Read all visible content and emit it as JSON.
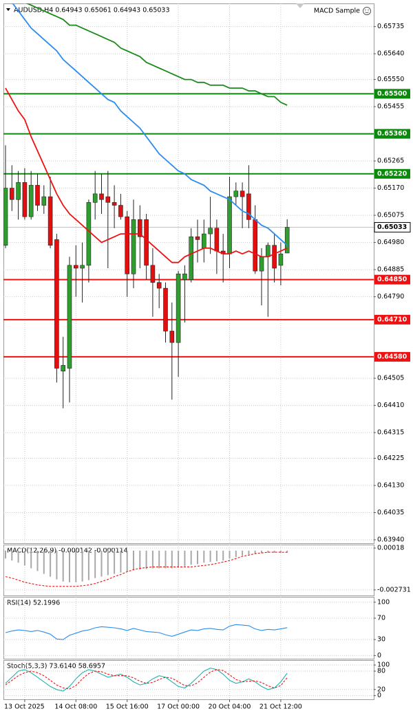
{
  "chart_data": [
    {
      "type": "candlestick",
      "title": "AUDUSD,H4  0.64943 0.65061 0.64943 0.65033",
      "subtitle": "MACD Sample",
      "categories": [
        null,
        null,
        null,
        "13 Oct 2025",
        null,
        null,
        null,
        null,
        null,
        null,
        null,
        "14 Oct 08:00",
        null,
        null,
        null,
        null,
        null,
        null,
        null,
        "15 Oct 16:00",
        null,
        null,
        null,
        null,
        null,
        null,
        null,
        "17 Oct 00:00",
        null,
        null,
        null,
        null,
        null,
        null,
        null,
        "20 Oct 04:00",
        null,
        null,
        null,
        null,
        null,
        null,
        null,
        "21 Oct 12:00",
        null
      ],
      "open": [
        0.6497,
        0.6517,
        0.6513,
        0.6519,
        0.6507,
        0.6518,
        0.6511,
        0.6514,
        0.6499,
        0.6453,
        0.6454,
        0.649,
        0.6489,
        0.649,
        0.6512,
        0.6515,
        0.6514,
        0.6512,
        0.6511,
        0.6507,
        0.6487,
        0.6506,
        0.6506,
        0.649,
        0.6484,
        0.6482,
        0.6467,
        0.6463,
        0.6485,
        0.6485,
        0.65,
        0.6496,
        0.6501,
        0.6503,
        0.6495,
        0.6494,
        0.6514,
        0.6516,
        0.6515,
        0.6506,
        0.6488,
        0.6493,
        0.6497,
        0.649,
        0.64943
      ],
      "high": [
        0.6532,
        0.6525,
        0.6523,
        0.6524,
        0.6523,
        0.6522,
        0.6518,
        0.6521,
        0.6501,
        0.6465,
        0.6493,
        0.6497,
        0.6498,
        0.6513,
        0.6523,
        0.6522,
        0.6523,
        0.6518,
        0.6515,
        0.6509,
        0.6513,
        0.6511,
        0.6508,
        0.6496,
        0.6487,
        0.6484,
        0.6477,
        0.6488,
        0.649,
        0.6503,
        0.6506,
        0.6506,
        0.6514,
        0.6506,
        0.6501,
        0.6521,
        0.6519,
        0.6519,
        0.6525,
        0.6511,
        0.6496,
        0.6498,
        0.6501,
        0.6498,
        0.65061
      ],
      "low": [
        0.6496,
        0.6509,
        0.6506,
        0.6506,
        0.6506,
        0.6509,
        0.6508,
        0.6496,
        0.6449,
        0.644,
        0.6442,
        0.6479,
        0.6477,
        0.6484,
        0.6506,
        0.6508,
        0.6489,
        0.6503,
        0.6506,
        0.6479,
        0.6482,
        0.6489,
        0.6485,
        0.6472,
        0.6475,
        0.6463,
        0.6443,
        0.6451,
        0.647,
        0.6484,
        0.6491,
        0.6491,
        0.6494,
        0.6487,
        0.6484,
        0.6489,
        0.6511,
        0.6503,
        0.6503,
        0.6487,
        0.6476,
        0.6472,
        0.6484,
        0.6483,
        0.64943
      ],
      "close": [
        0.6517,
        0.6513,
        0.6519,
        0.6507,
        0.6518,
        0.6511,
        0.6514,
        0.6497,
        0.6454,
        0.6455,
        0.649,
        0.6489,
        0.649,
        0.6512,
        0.6515,
        0.6513,
        0.6512,
        0.6511,
        0.6507,
        0.6487,
        0.6506,
        0.65,
        0.649,
        0.6484,
        0.6482,
        0.6467,
        0.6463,
        0.6487,
        0.6487,
        0.65,
        0.6499,
        0.6501,
        0.6503,
        0.6495,
        0.6494,
        0.6514,
        0.6516,
        0.6514,
        0.6506,
        0.6488,
        0.6493,
        0.6497,
        0.6489,
        0.6494,
        0.65033
      ],
      "up_color": "#2e9e2e",
      "down_color": "#e01010",
      "series": [
        {
          "color": "#2a8cf0",
          "values": [
            0.6585,
            0.6582,
            0.6579,
            0.6576,
            0.6573,
            0.6571,
            0.6569,
            0.6567,
            0.6565,
            0.6562,
            0.656,
            0.6558,
            0.6556,
            0.6554,
            0.6552,
            0.655,
            0.6548,
            0.6547,
            0.6544,
            0.6542,
            0.654,
            0.6538,
            0.6535,
            0.6532,
            0.6529,
            0.6527,
            0.6525,
            0.6523,
            0.6522,
            0.652,
            0.6519,
            0.6518,
            0.6516,
            0.6515,
            0.6514,
            0.6513,
            0.6511,
            0.6509,
            0.6508,
            0.6506,
            0.6504,
            0.6503,
            0.6501,
            0.6499,
            0.6497
          ]
        },
        {
          "color": "#1a8a1a",
          "values": [
            0.6586,
            0.6585,
            0.6583,
            0.6582,
            0.6581,
            0.658,
            0.6579,
            0.6578,
            0.6577,
            0.6576,
            0.6574,
            0.6574,
            0.6573,
            0.6572,
            0.6571,
            0.657,
            0.6569,
            0.6568,
            0.6566,
            0.6565,
            0.6564,
            0.6563,
            0.6561,
            0.656,
            0.6559,
            0.6558,
            0.6557,
            0.6556,
            0.6555,
            0.6555,
            0.6554,
            0.6554,
            0.6553,
            0.6553,
            0.6553,
            0.6552,
            0.6552,
            0.6552,
            0.6551,
            0.6551,
            0.655,
            0.6549,
            0.6549,
            0.6547,
            0.6546
          ]
        },
        {
          "color": "#ee1111",
          "values": [
            0.6552,
            0.6548,
            0.6544,
            0.6541,
            0.6535,
            0.653,
            0.6525,
            0.652,
            0.6515,
            0.6511,
            0.6508,
            0.6506,
            0.6504,
            0.6502,
            0.65,
            0.6498,
            0.6499,
            0.65,
            0.6501,
            0.6501,
            0.6501,
            0.6501,
            0.6499,
            0.6497,
            0.6495,
            0.6493,
            0.6491,
            0.6491,
            0.6493,
            0.6494,
            0.6495,
            0.6496,
            0.6496,
            0.6495,
            0.6494,
            0.6494,
            0.6495,
            0.6494,
            0.6495,
            0.6494,
            0.6493,
            0.6493,
            0.6494,
            0.6495,
            0.6496
          ]
        }
      ],
      "levels": [
        {
          "value": 0.655,
          "label": "0.65500",
          "color": "#0a8a0a"
        },
        {
          "value": 0.6536,
          "label": "0.65360",
          "color": "#0a8a0a"
        },
        {
          "value": 0.6522,
          "label": "0.65220",
          "color": "#0a8a0a"
        },
        {
          "value": 0.6485,
          "label": "0.64850",
          "color": "#ee1111"
        },
        {
          "value": 0.6471,
          "label": "0.64710",
          "color": "#ee1111"
        },
        {
          "value": 0.6458,
          "label": "0.64580",
          "color": "#ee1111"
        }
      ],
      "current": 0.65033,
      "ylim": [
        0.63928,
        0.65816
      ],
      "yticks": [
        0.65735,
        {
          "value": 0.6564,
          "label": "0.65640"
        },
        {
          "value": 0.6555,
          "label": "0.65550"
        },
        0.65455,
        0.65265,
        {
          "value": 0.6517,
          "label": "0.65170"
        },
        0.65075,
        {
          "value": 0.6498,
          "label": "0.64980"
        },
        0.64885,
        {
          "value": 0.6479,
          "label": "0.64790"
        },
        0.64505,
        {
          "value": 0.6441,
          "label": "0.64410"
        },
        0.64315,
        0.64225,
        {
          "value": 0.6413,
          "label": "0.64130"
        },
        0.64035,
        {
          "value": 0.6394,
          "label": "0.63940"
        }
      ],
      "grid": true
    },
    {
      "type": "indicator",
      "title": "MACD(12,26,9) -0.000142 -0.000114",
      "series": [
        {
          "type": "bar",
          "color": "#a8a8a8",
          "values": [
            -0.00055,
            -0.00069,
            -0.00084,
            -0.00103,
            -0.00123,
            -0.00142,
            -0.00162,
            -0.00181,
            -0.002,
            -0.00215,
            -0.0022,
            -0.0022,
            -0.00215,
            -0.00205,
            -0.00191,
            -0.00181,
            -0.00171,
            -0.00162,
            -0.00152,
            -0.00147,
            -0.00137,
            -0.00132,
            -0.00128,
            -0.00123,
            -0.00123,
            -0.00123,
            -0.00123,
            -0.00118,
            -0.00108,
            -0.00098,
            -0.00094,
            -0.00084,
            -0.00079,
            -0.00074,
            -0.00069,
            -0.00055,
            -0.00045,
            -0.00035,
            -0.00026,
            -0.00021,
            -0.00016,
            -0.00015,
            -0.00015,
            -0.00015,
            -0.000142
          ]
        },
        {
          "type": "line",
          "dashed": true,
          "color": "#ee1111",
          "values": [
            -0.00181,
            -0.00191,
            -0.00205,
            -0.0022,
            -0.00229,
            -0.00239,
            -0.00244,
            -0.00249,
            -0.00249,
            -0.00249,
            -0.00249,
            -0.00249,
            -0.00244,
            -0.00239,
            -0.00229,
            -0.00215,
            -0.002,
            -0.00181,
            -0.00166,
            -0.00147,
            -0.00132,
            -0.00123,
            -0.00118,
            -0.00113,
            -0.00113,
            -0.00113,
            -0.00113,
            -0.00113,
            -0.00113,
            -0.00113,
            -0.00108,
            -0.00103,
            -0.00098,
            -0.00089,
            -0.00079,
            -0.00069,
            -0.00055,
            -0.0004,
            -0.00031,
            -0.00021,
            -0.00016,
            -0.00011,
            -0.00011,
            -0.00011,
            -0.000114
          ]
        }
      ],
      "ylim": [
        -0.00312,
        0.00042
      ],
      "yticks": [
        0.00018,
        -0.002731
      ],
      "grid": true
    },
    {
      "type": "indicator",
      "title": "RSI(14) 52.1996",
      "series": [
        {
          "type": "line",
          "color": "#2a8cf0",
          "values": [
            43,
            46,
            48,
            47,
            45,
            47,
            44,
            40,
            31,
            30,
            38,
            42,
            46,
            48,
            52,
            54,
            53,
            52,
            50,
            47,
            51,
            48,
            45,
            44,
            43,
            39,
            36,
            40,
            44,
            48,
            47,
            50,
            51,
            49,
            48,
            55,
            58,
            57,
            56,
            50,
            47,
            49,
            48,
            50,
            52.1996
          ]
        }
      ],
      "ylim": [
        -6,
        110
      ],
      "yticks": [
        100,
        70,
        30,
        0
      ],
      "grid": true
    },
    {
      "type": "indicator",
      "title": "Stoch(5,3,3) 73.6140 58.6957",
      "series": [
        {
          "type": "line",
          "color": "#20b2aa",
          "values": [
            40,
            60,
            80,
            85,
            75,
            60,
            45,
            30,
            20,
            15,
            30,
            55,
            75,
            85,
            80,
            70,
            60,
            65,
            70,
            60,
            45,
            35,
            40,
            55,
            65,
            60,
            45,
            30,
            25,
            40,
            60,
            80,
            90,
            85,
            70,
            50,
            40,
            45,
            55,
            45,
            30,
            20,
            25,
            45,
            73.614
          ]
        },
        {
          "type": "line",
          "dashed": true,
          "color": "#ee1111",
          "values": [
            35,
            50,
            65,
            75,
            80,
            75,
            65,
            50,
            35,
            25,
            22,
            33,
            55,
            72,
            80,
            78,
            70,
            65,
            65,
            65,
            58,
            47,
            40,
            43,
            53,
            60,
            57,
            45,
            33,
            32,
            42,
            60,
            77,
            85,
            82,
            68,
            53,
            45,
            47,
            48,
            43,
            32,
            25,
            33,
            58.6957
          ]
        }
      ],
      "ylim": [
        -12,
        116
      ],
      "yticks": [
        100,
        80,
        20,
        0
      ],
      "grid": true
    }
  ]
}
